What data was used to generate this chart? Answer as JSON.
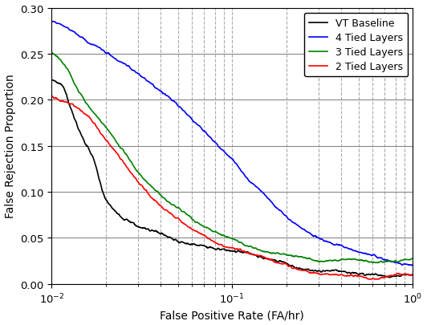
{
  "title": "",
  "xlabel": "False Positive Rate (FA/hr)",
  "ylabel": "False Rejection Proportion",
  "xlim": [
    0.01,
    1.0
  ],
  "ylim": [
    0.0,
    0.3
  ],
  "yticks": [
    0.0,
    0.05,
    0.1,
    0.15,
    0.2,
    0.25,
    0.3
  ],
  "legend": [
    "VT Baseline",
    "4 Tied Layers",
    "3 Tied Layers",
    "2 Tied Layers"
  ],
  "colors": [
    "black",
    "blue",
    "green",
    "red"
  ],
  "background": "white",
  "grid_h_color": "#888888",
  "grid_v_color": "#aaaaaa",
  "curve_data": {
    "black": {
      "x_knots": [
        0.01,
        0.0115,
        0.013,
        0.015,
        0.017,
        0.02,
        0.025,
        0.03,
        0.04,
        0.06,
        0.1,
        0.2,
        0.5,
        1.0
      ],
      "y_knots": [
        0.22,
        0.215,
        0.19,
        0.16,
        0.14,
        0.095,
        0.075,
        0.065,
        0.055,
        0.042,
        0.033,
        0.022,
        0.013,
        0.012
      ]
    },
    "blue": {
      "x_knots": [
        0.01,
        0.012,
        0.015,
        0.02,
        0.03,
        0.04,
        0.055,
        0.07,
        0.1,
        0.12,
        0.15,
        0.2,
        0.3,
        0.5,
        1.0
      ],
      "y_knots": [
        0.285,
        0.278,
        0.265,
        0.248,
        0.225,
        0.205,
        0.185,
        0.165,
        0.135,
        0.115,
        0.095,
        0.07,
        0.045,
        0.028,
        0.015
      ]
    },
    "green": {
      "x_knots": [
        0.01,
        0.012,
        0.014,
        0.017,
        0.02,
        0.025,
        0.03,
        0.04,
        0.055,
        0.075,
        0.1,
        0.15,
        0.3,
        0.6,
        1.0
      ],
      "y_knots": [
        0.25,
        0.235,
        0.21,
        0.185,
        0.165,
        0.14,
        0.12,
        0.095,
        0.072,
        0.055,
        0.043,
        0.03,
        0.018,
        0.013,
        0.011
      ]
    },
    "red": {
      "x_knots": [
        0.01,
        0.011,
        0.013,
        0.015,
        0.017,
        0.02,
        0.025,
        0.03,
        0.04,
        0.06,
        0.08,
        0.1,
        0.15,
        0.3,
        0.6,
        1.0
      ],
      "y_knots": [
        0.205,
        0.2,
        0.195,
        0.185,
        0.175,
        0.155,
        0.13,
        0.11,
        0.085,
        0.062,
        0.05,
        0.042,
        0.03,
        0.018,
        0.013,
        0.011
      ]
    }
  },
  "noise_scales": [
    0.0025,
    0.0018,
    0.002,
    0.0022
  ],
  "noise_seeds": [
    42,
    17,
    99,
    55
  ]
}
